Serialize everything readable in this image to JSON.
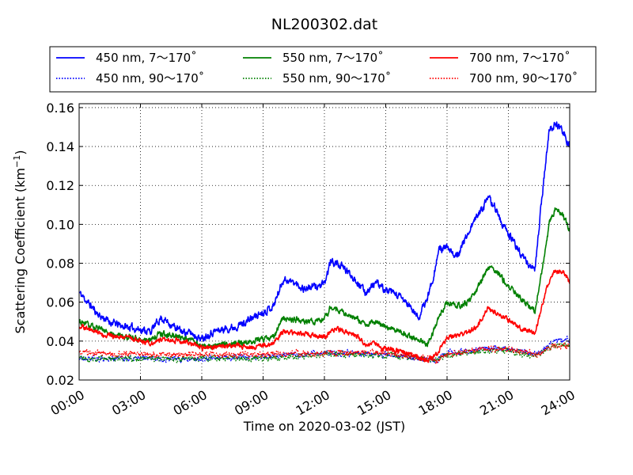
{
  "chart_data": {
    "type": "line",
    "title": "NL200302.dat",
    "xlabel": "Time on 2020-03-02 (JST)",
    "ylabel_main": "Scattering Coefficient (km",
    "ylabel_sup": "−1",
    "ylabel_close": ")",
    "xlim": [
      0,
      24
    ],
    "ylim": [
      0.02,
      0.162
    ],
    "grid": true,
    "legend_placement": "top, above axes",
    "x_ticks": [
      {
        "value": 0,
        "label": "00:00"
      },
      {
        "value": 3,
        "label": "03:00"
      },
      {
        "value": 6,
        "label": "06:00"
      },
      {
        "value": 9,
        "label": "09:00"
      },
      {
        "value": 12,
        "label": "12:00"
      },
      {
        "value": 15,
        "label": "15:00"
      },
      {
        "value": 18,
        "label": "18:00"
      },
      {
        "value": 21,
        "label": "21:00"
      },
      {
        "value": 24,
        "label": "24:00"
      }
    ],
    "y_ticks": [
      {
        "value": 0.02,
        "label": "0.02"
      },
      {
        "value": 0.04,
        "label": "0.04"
      },
      {
        "value": 0.06,
        "label": "0.06"
      },
      {
        "value": 0.08,
        "label": "0.08"
      },
      {
        "value": 0.1,
        "label": "0.10"
      },
      {
        "value": 0.12,
        "label": "0.12"
      },
      {
        "value": 0.14,
        "label": "0.14"
      },
      {
        "value": 0.16,
        "label": "0.16"
      }
    ],
    "series": [
      {
        "name": "450 nm, 7～170˚",
        "color": "#0000ff",
        "style": "solid",
        "noise": 0.0015,
        "seed": 11,
        "x": [
          0,
          0.5,
          1,
          1.5,
          2,
          2.5,
          3,
          3.5,
          4,
          4.3,
          4.7,
          5,
          5.5,
          6,
          6.2,
          6.6,
          7,
          7.5,
          8,
          8.5,
          9,
          9.5,
          10,
          10.5,
          11,
          11.5,
          12,
          12.3,
          12.6,
          13,
          13.5,
          14,
          14.5,
          15,
          15.5,
          16,
          16.3,
          16.6,
          17,
          17.3,
          17.6,
          18,
          18.3,
          18.6,
          19,
          19.5,
          20,
          20.3,
          20.7,
          21,
          21.5,
          22,
          22.3,
          22.7,
          23,
          23.3,
          23.7,
          24
        ],
        "y": [
          0.065,
          0.059,
          0.053,
          0.05,
          0.048,
          0.047,
          0.046,
          0.045,
          0.052,
          0.05,
          0.047,
          0.045,
          0.044,
          0.041,
          0.043,
          0.045,
          0.046,
          0.047,
          0.049,
          0.052,
          0.055,
          0.058,
          0.072,
          0.07,
          0.067,
          0.068,
          0.069,
          0.081,
          0.08,
          0.077,
          0.072,
          0.065,
          0.07,
          0.066,
          0.064,
          0.06,
          0.056,
          0.052,
          0.061,
          0.072,
          0.087,
          0.088,
          0.084,
          0.086,
          0.095,
          0.105,
          0.113,
          0.11,
          0.1,
          0.095,
          0.087,
          0.079,
          0.077,
          0.12,
          0.148,
          0.152,
          0.147,
          0.14
        ]
      },
      {
        "name": "450 nm, 90～170˚",
        "color": "#0000ff",
        "style": "dotted",
        "noise": 0.0012,
        "seed": 21,
        "x": [
          0,
          3,
          6,
          9,
          12,
          15,
          16.5,
          17.5,
          18,
          20,
          21,
          22,
          22.5,
          23,
          24
        ],
        "y": [
          0.031,
          0.031,
          0.031,
          0.032,
          0.034,
          0.033,
          0.031,
          0.03,
          0.034,
          0.036,
          0.036,
          0.034,
          0.033,
          0.039,
          0.041
        ]
      },
      {
        "name": "550 nm, 7～170˚",
        "color": "#008000",
        "style": "solid",
        "noise": 0.0012,
        "seed": 31,
        "x": [
          0,
          0.5,
          1,
          1.5,
          2,
          2.5,
          3,
          3.5,
          4,
          4.5,
          5,
          5.5,
          6,
          6.5,
          7,
          7.5,
          8,
          8.5,
          9,
          9.5,
          10,
          10.5,
          11,
          11.5,
          12,
          12.3,
          12.6,
          13,
          13.5,
          14,
          14.5,
          15,
          15.5,
          16,
          16.3,
          16.6,
          17,
          17.3,
          17.6,
          18,
          18.5,
          19,
          19.5,
          20,
          20.3,
          20.7,
          21,
          21.5,
          22,
          22.3,
          22.7,
          23,
          23.3,
          23.7,
          24
        ],
        "y": [
          0.05,
          0.048,
          0.046,
          0.044,
          0.043,
          0.042,
          0.041,
          0.041,
          0.044,
          0.043,
          0.042,
          0.041,
          0.037,
          0.038,
          0.038,
          0.039,
          0.039,
          0.04,
          0.041,
          0.042,
          0.052,
          0.051,
          0.05,
          0.05,
          0.051,
          0.057,
          0.056,
          0.054,
          0.052,
          0.048,
          0.05,
          0.047,
          0.046,
          0.043,
          0.042,
          0.041,
          0.038,
          0.044,
          0.052,
          0.06,
          0.058,
          0.06,
          0.067,
          0.078,
          0.077,
          0.072,
          0.068,
          0.063,
          0.058,
          0.055,
          0.08,
          0.1,
          0.108,
          0.104,
          0.097
        ]
      },
      {
        "name": "550 nm, 90～170˚",
        "color": "#008000",
        "style": "dotted",
        "noise": 0.0012,
        "seed": 41,
        "x": [
          0,
          3,
          6,
          9,
          12,
          15,
          16.5,
          17.5,
          18,
          20,
          21,
          22,
          22.5,
          23,
          24
        ],
        "y": [
          0.031,
          0.031,
          0.031,
          0.031,
          0.033,
          0.033,
          0.031,
          0.03,
          0.033,
          0.035,
          0.035,
          0.033,
          0.033,
          0.037,
          0.038
        ]
      },
      {
        "name": "700 nm, 7～170˚",
        "color": "#ff0000",
        "style": "solid",
        "noise": 0.001,
        "seed": 51,
        "x": [
          0,
          0.5,
          1,
          1.5,
          2,
          2.5,
          3,
          3.5,
          4,
          4.5,
          5,
          5.5,
          6,
          6.5,
          7,
          7.5,
          8,
          8.5,
          9,
          9.5,
          10,
          10.5,
          11,
          11.5,
          12,
          12.5,
          13,
          13.5,
          14,
          14.5,
          15,
          15.5,
          16,
          16.5,
          17,
          17.5,
          18,
          18.5,
          19,
          19.5,
          20,
          20.5,
          21,
          21.5,
          22,
          22.3,
          22.7,
          23,
          23.3,
          23.7,
          24
        ],
        "y": [
          0.048,
          0.046,
          0.044,
          0.043,
          0.042,
          0.042,
          0.04,
          0.039,
          0.041,
          0.041,
          0.04,
          0.039,
          0.036,
          0.037,
          0.037,
          0.038,
          0.037,
          0.037,
          0.038,
          0.039,
          0.045,
          0.044,
          0.044,
          0.043,
          0.042,
          0.046,
          0.045,
          0.043,
          0.038,
          0.039,
          0.036,
          0.035,
          0.034,
          0.032,
          0.03,
          0.033,
          0.042,
          0.043,
          0.044,
          0.048,
          0.057,
          0.054,
          0.051,
          0.047,
          0.045,
          0.044,
          0.06,
          0.071,
          0.076,
          0.075,
          0.07
        ]
      },
      {
        "name": "700 nm, 90～170˚",
        "color": "#ff0000",
        "style": "dotted",
        "noise": 0.0012,
        "seed": 61,
        "x": [
          0,
          3,
          6,
          9,
          12,
          15,
          16.5,
          17.5,
          18,
          20,
          21,
          22,
          22.5,
          23,
          24
        ],
        "y": [
          0.034,
          0.033,
          0.033,
          0.033,
          0.034,
          0.034,
          0.032,
          0.03,
          0.033,
          0.036,
          0.036,
          0.034,
          0.033,
          0.037,
          0.038
        ]
      }
    ]
  }
}
